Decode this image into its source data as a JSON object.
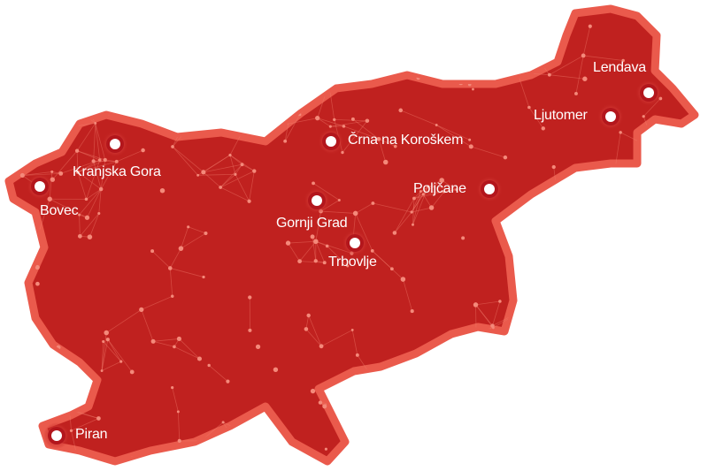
{
  "colors": {
    "fill": "#c0211f",
    "border": "#ea5a4c",
    "network": "#f07a6a",
    "marker": "#ffffff"
  },
  "cities": [
    {
      "name": "Lendava"
    },
    {
      "name": "Ljutomer"
    },
    {
      "name": "Črna na Koroškem"
    },
    {
      "name": "Poljčane"
    },
    {
      "name": "Kranjska Gora"
    },
    {
      "name": "Bovec"
    },
    {
      "name": "Gornji Grad"
    },
    {
      "name": "Trbovlje"
    },
    {
      "name": "Piran"
    }
  ]
}
